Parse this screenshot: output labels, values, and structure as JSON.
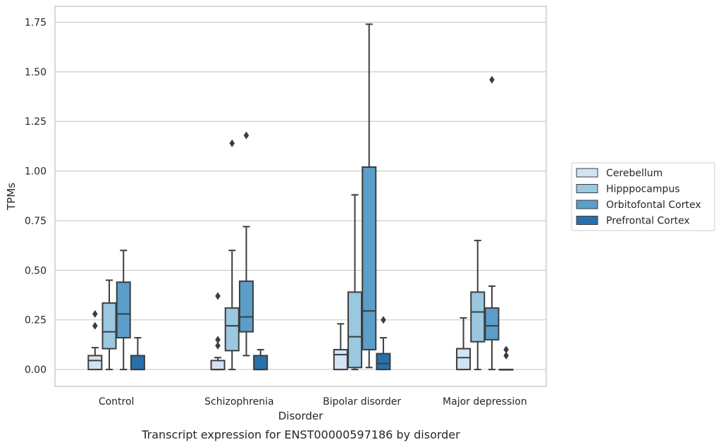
{
  "chart_data": {
    "type": "box",
    "caption": "Transcript expression for ENST00000597186 by disorder",
    "xlabel": "Disorder",
    "ylabel": "TPMs",
    "ylim": [
      -0.085,
      1.83
    ],
    "yticks": [
      "0.00",
      "0.25",
      "0.50",
      "0.75",
      "1.00",
      "1.25",
      "1.50",
      "1.75"
    ],
    "grid": true,
    "legend_position": "right",
    "categories": [
      "Control",
      "Schizophrenia",
      "Bipolar disorder",
      "Major depression"
    ],
    "series": [
      {
        "name": "Cerebellum",
        "color": "#d2e3f3",
        "boxes": [
          {
            "whislo": 0.0,
            "q1": 0.0,
            "med": 0.045,
            "q3": 0.07,
            "whishi": 0.11,
            "fliers": [
              0.22,
              0.28
            ]
          },
          {
            "whislo": 0.0,
            "q1": 0.0,
            "med": 0.0,
            "q3": 0.045,
            "whishi": 0.06,
            "fliers": [
              0.12,
              0.15,
              0.37
            ]
          },
          {
            "whislo": 0.0,
            "q1": 0.0,
            "med": 0.075,
            "q3": 0.1,
            "whishi": 0.23,
            "fliers": []
          },
          {
            "whislo": 0.0,
            "q1": 0.0,
            "med": 0.06,
            "q3": 0.105,
            "whishi": 0.26,
            "fliers": []
          }
        ]
      },
      {
        "name": "Hipppocampus",
        "color": "#9ac8e0",
        "boxes": [
          {
            "whislo": 0.0,
            "q1": 0.105,
            "med": 0.19,
            "q3": 0.335,
            "whishi": 0.45,
            "fliers": []
          },
          {
            "whislo": 0.0,
            "q1": 0.095,
            "med": 0.22,
            "q3": 0.31,
            "whishi": 0.6,
            "fliers": [
              1.14
            ]
          },
          {
            "whislo": 0.0,
            "q1": 0.01,
            "med": 0.165,
            "q3": 0.39,
            "whishi": 0.88,
            "fliers": []
          },
          {
            "whislo": 0.0,
            "q1": 0.14,
            "med": 0.29,
            "q3": 0.39,
            "whishi": 0.65,
            "fliers": []
          }
        ]
      },
      {
        "name": "Orbitofontal Cortex",
        "color": "#5a9ec9",
        "boxes": [
          {
            "whislo": 0.0,
            "q1": 0.16,
            "med": 0.28,
            "q3": 0.44,
            "whishi": 0.6,
            "fliers": []
          },
          {
            "whislo": 0.07,
            "q1": 0.19,
            "med": 0.265,
            "q3": 0.445,
            "whishi": 0.72,
            "fliers": [
              1.18
            ]
          },
          {
            "whislo": 0.01,
            "q1": 0.1,
            "med": 0.295,
            "q3": 1.02,
            "whishi": 1.74,
            "fliers": []
          },
          {
            "whislo": 0.0,
            "q1": 0.15,
            "med": 0.22,
            "q3": 0.31,
            "whishi": 0.42,
            "fliers": [
              1.46
            ]
          }
        ]
      },
      {
        "name": "Prefrontal Cortex",
        "color": "#2a6fad",
        "boxes": [
          {
            "whislo": 0.0,
            "q1": 0.0,
            "med": 0.0,
            "q3": 0.07,
            "whishi": 0.16,
            "fliers": []
          },
          {
            "whislo": 0.0,
            "q1": 0.0,
            "med": 0.0,
            "q3": 0.07,
            "whishi": 0.1,
            "fliers": []
          },
          {
            "whislo": 0.0,
            "q1": 0.0,
            "med": 0.03,
            "q3": 0.08,
            "whishi": 0.16,
            "fliers": [
              0.25
            ]
          },
          {
            "whislo": 0.0,
            "q1": 0.0,
            "med": 0.0,
            "q3": 0.0,
            "whishi": 0.0,
            "fliers": [
              0.07,
              0.1
            ]
          }
        ]
      }
    ]
  }
}
